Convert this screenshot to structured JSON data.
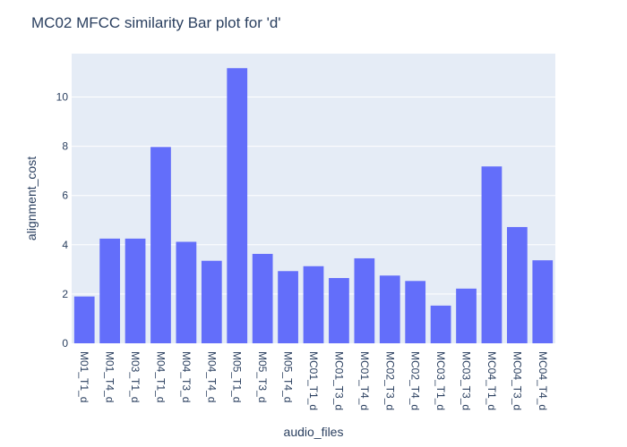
{
  "chart_data": {
    "type": "bar",
    "title": "MC02 MFCC similarity Bar plot for 'd'",
    "xlabel": "audio_files",
    "ylabel": "alignment_cost",
    "categories": [
      "M01_T1_d",
      "M01_T4_d",
      "M03_T1_d",
      "M04_T1_d",
      "M04_T3_d",
      "M04_T4_d",
      "M05_T1_d",
      "M05_T3_d",
      "M05_T4_d",
      "MC01_T1_d",
      "MC01_T3_d",
      "MC01_T4_d",
      "MC02_T3_d",
      "MC02_T4_d",
      "MC03_T1_d",
      "MC03_T3_d",
      "MC04_T1_d",
      "MC04_T3_d",
      "MC04_T4_d"
    ],
    "values": [
      1.9,
      4.25,
      4.25,
      7.97,
      4.12,
      3.35,
      11.17,
      3.63,
      2.93,
      3.13,
      2.65,
      3.45,
      2.75,
      2.53,
      1.53,
      2.22,
      7.18,
      4.72,
      3.37
    ],
    "ylim": [
      0,
      11.76
    ],
    "yticks": [
      0,
      2,
      4,
      6,
      8,
      10
    ],
    "grid": true,
    "legend": "none",
    "colors": {
      "bar": "#636efa",
      "plot_bg": "#e5ecf6",
      "grid": "#ffffff",
      "text": "#2a3f5f",
      "page_bg": "#ffffff"
    }
  }
}
